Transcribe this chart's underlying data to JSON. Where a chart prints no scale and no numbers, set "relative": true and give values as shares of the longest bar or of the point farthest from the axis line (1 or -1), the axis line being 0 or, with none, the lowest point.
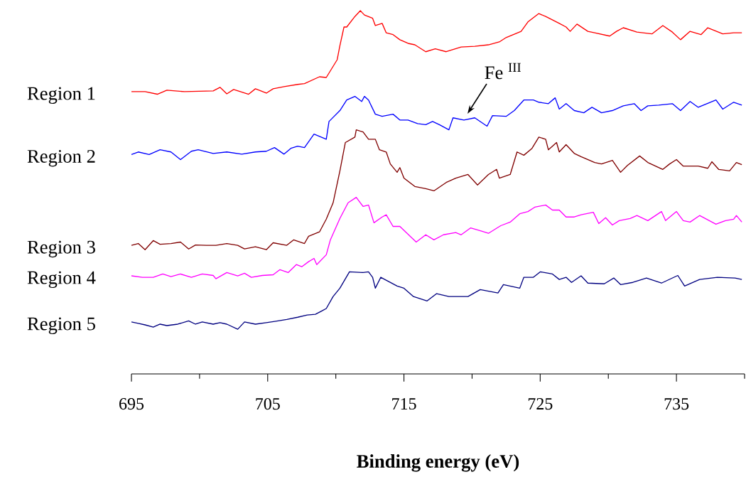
{
  "chart_data": {
    "type": "line",
    "relative": true,
    "xlabel": "Binding energy (eV)",
    "xlim": [
      695,
      740
    ],
    "xticks": [
      695,
      {
        "value": 700,
        "label": null
      },
      705,
      {
        "value": 710,
        "label": null
      },
      715,
      {
        "value": 720,
        "label": null
      },
      725,
      {
        "value": 730,
        "label": null
      },
      735,
      {
        "value": 740,
        "label": null
      }
    ],
    "legend": false,
    "annotations": [
      "Fe $^{III}$"
    ],
    "series": [
      {
        "name": "Region 1",
        "color": "#ff0000",
        "x": [
          695.0,
          696.0,
          696.9,
          697.6,
          698.9,
          701.0,
          701.5,
          702.0,
          702.5,
          703.6,
          704.1,
          704.9,
          705.4,
          706.2,
          707.2,
          707.7,
          708.8,
          709.3,
          710.1,
          710.3,
          710.6,
          710.8,
          711.4,
          711.8,
          712.1,
          712.7,
          712.9,
          713.4,
          713.7,
          714.2,
          714.7,
          715.3,
          715.8,
          716.6,
          717.3,
          718.1,
          719.2,
          720.2,
          721.2,
          722.0,
          722.5,
          723.6,
          724.1,
          724.9,
          725.4,
          726.4,
          726.9,
          727.2,
          727.7,
          728.5,
          729.0,
          730.1,
          730.6,
          731.1,
          732.1,
          733.2,
          734.0,
          734.7,
          735.3,
          736.0,
          736.8,
          737.3,
          738.4,
          739.2,
          739.8
        ],
        "values": [
          0.777,
          0.777,
          0.77,
          0.781,
          0.777,
          0.779,
          0.789,
          0.771,
          0.783,
          0.77,
          0.785,
          0.773,
          0.785,
          0.791,
          0.797,
          0.799,
          0.818,
          0.816,
          0.865,
          0.904,
          0.955,
          0.955,
          0.984,
          1.0,
          0.988,
          0.979,
          0.959,
          0.965,
          0.939,
          0.934,
          0.92,
          0.91,
          0.906,
          0.887,
          0.895,
          0.887,
          0.9,
          0.902,
          0.906,
          0.914,
          0.926,
          0.943,
          0.969,
          0.992,
          0.984,
          0.965,
          0.955,
          0.943,
          0.963,
          0.943,
          0.939,
          0.93,
          0.943,
          0.953,
          0.941,
          0.936,
          0.959,
          0.941,
          0.92,
          0.943,
          0.934,
          0.953,
          0.936,
          0.939,
          0.939
        ]
      },
      {
        "name": "Region 2",
        "color": "#0000ff",
        "x": [
          695.0,
          695.5,
          696.3,
          697.1,
          697.9,
          698.6,
          699.4,
          699.9,
          701.0,
          702.0,
          703.1,
          704.1,
          704.9,
          705.5,
          706.2,
          706.7,
          707.2,
          707.7,
          708.4,
          709.3,
          709.5,
          710.3,
          710.8,
          711.4,
          711.9,
          712.1,
          712.4,
          712.9,
          713.4,
          714.2,
          714.7,
          715.3,
          716.0,
          716.6,
          717.1,
          717.6,
          718.3,
          718.6,
          719.4,
          720.2,
          721.1,
          721.5,
          722.5,
          723.1,
          723.8,
          724.5,
          724.9,
          725.6,
          726.1,
          726.4,
          726.9,
          727.5,
          728.2,
          728.8,
          729.5,
          730.3,
          731.1,
          731.9,
          732.4,
          732.9,
          733.7,
          734.7,
          735.3,
          736.0,
          736.6,
          737.9,
          738.4,
          739.2,
          739.8
        ],
        "values": [
          0.604,
          0.611,
          0.604,
          0.617,
          0.611,
          0.59,
          0.613,
          0.617,
          0.607,
          0.611,
          0.605,
          0.611,
          0.613,
          0.623,
          0.605,
          0.621,
          0.627,
          0.623,
          0.66,
          0.646,
          0.695,
          0.725,
          0.754,
          0.764,
          0.75,
          0.764,
          0.754,
          0.715,
          0.709,
          0.715,
          0.699,
          0.699,
          0.689,
          0.686,
          0.695,
          0.686,
          0.672,
          0.705,
          0.699,
          0.705,
          0.682,
          0.711,
          0.709,
          0.725,
          0.754,
          0.754,
          0.748,
          0.744,
          0.76,
          0.729,
          0.744,
          0.725,
          0.719,
          0.734,
          0.719,
          0.725,
          0.738,
          0.744,
          0.725,
          0.738,
          0.74,
          0.744,
          0.725,
          0.75,
          0.734,
          0.754,
          0.729,
          0.748,
          0.74
        ]
      },
      {
        "name": "Region 3",
        "color": "#800000",
        "x": [
          695.0,
          695.5,
          696.0,
          696.6,
          697.1,
          697.9,
          698.6,
          699.2,
          699.7,
          700.5,
          701.2,
          702.0,
          702.8,
          703.3,
          704.1,
          704.9,
          705.4,
          706.4,
          706.9,
          707.7,
          708.0,
          708.8,
          709.3,
          709.8,
          710.3,
          710.7,
          711.4,
          711.5,
          712.0,
          712.4,
          712.9,
          713.2,
          713.7,
          714.0,
          714.5,
          714.7,
          715.0,
          715.8,
          716.6,
          717.2,
          718.1,
          718.8,
          719.7,
          720.4,
          721.2,
          721.8,
          722.0,
          722.8,
          723.3,
          723.8,
          724.4,
          724.9,
          725.4,
          725.6,
          726.2,
          726.4,
          726.9,
          727.5,
          728.0,
          729.0,
          729.5,
          730.3,
          730.9,
          731.4,
          732.3,
          732.9,
          734.0,
          734.5,
          735.0,
          735.5,
          736.6,
          737.3,
          737.6,
          738.1,
          738.9,
          739.4,
          739.8
        ],
        "values": [
          0.354,
          0.359,
          0.342,
          0.367,
          0.357,
          0.359,
          0.363,
          0.344,
          0.355,
          0.354,
          0.354,
          0.359,
          0.354,
          0.344,
          0.35,
          0.342,
          0.361,
          0.354,
          0.369,
          0.359,
          0.379,
          0.391,
          0.426,
          0.471,
          0.559,
          0.637,
          0.652,
          0.672,
          0.666,
          0.646,
          0.646,
          0.617,
          0.611,
          0.578,
          0.555,
          0.568,
          0.539,
          0.516,
          0.51,
          0.504,
          0.527,
          0.539,
          0.549,
          0.52,
          0.549,
          0.563,
          0.539,
          0.549,
          0.611,
          0.602,
          0.621,
          0.652,
          0.646,
          0.617,
          0.637,
          0.611,
          0.631,
          0.607,
          0.598,
          0.582,
          0.578,
          0.588,
          0.555,
          0.574,
          0.6,
          0.582,
          0.563,
          0.578,
          0.59,
          0.572,
          0.572,
          0.566,
          0.584,
          0.563,
          0.559,
          0.582,
          0.576
        ]
      },
      {
        "name": "Region 4",
        "color": "#ff00ff",
        "x": [
          695.0,
          695.8,
          696.6,
          697.3,
          697.9,
          698.6,
          699.4,
          700.2,
          701.0,
          701.2,
          702.0,
          702.8,
          703.3,
          703.8,
          704.6,
          705.4,
          705.9,
          706.5,
          707.1,
          707.5,
          708.0,
          708.4,
          708.6,
          709.3,
          709.6,
          710.3,
          710.9,
          711.5,
          712.0,
          712.4,
          712.8,
          713.4,
          713.7,
          714.2,
          714.7,
          715.9,
          716.6,
          717.2,
          717.9,
          718.8,
          719.2,
          719.9,
          720.7,
          721.2,
          722.1,
          722.8,
          723.5,
          724.1,
          724.6,
          725.4,
          725.9,
          726.4,
          726.9,
          727.5,
          728.0,
          728.9,
          729.3,
          729.8,
          730.3,
          730.8,
          731.6,
          732.1,
          732.9,
          733.9,
          734.2,
          735.0,
          735.5,
          736.0,
          736.7,
          737.9,
          738.6,
          739.2,
          739.4,
          739.8
        ],
        "values": [
          0.27,
          0.266,
          0.266,
          0.275,
          0.268,
          0.275,
          0.266,
          0.275,
          0.271,
          0.262,
          0.279,
          0.27,
          0.277,
          0.266,
          0.271,
          0.273,
          0.287,
          0.279,
          0.301,
          0.295,
          0.309,
          0.318,
          0.301,
          0.328,
          0.369,
          0.428,
          0.471,
          0.486,
          0.461,
          0.465,
          0.416,
          0.432,
          0.438,
          0.406,
          0.406,
          0.363,
          0.383,
          0.369,
          0.383,
          0.389,
          0.383,
          0.402,
          0.393,
          0.387,
          0.408,
          0.418,
          0.441,
          0.447,
          0.459,
          0.465,
          0.451,
          0.451,
          0.432,
          0.432,
          0.438,
          0.445,
          0.414,
          0.43,
          0.41,
          0.422,
          0.428,
          0.436,
          0.422,
          0.447,
          0.422,
          0.447,
          0.422,
          0.418,
          0.436,
          0.412,
          0.422,
          0.426,
          0.436,
          0.418
        ]
      },
      {
        "name": "Region 5",
        "color": "#000080",
        "x": [
          695.0,
          695.5,
          696.0,
          696.6,
          697.1,
          697.6,
          698.4,
          699.2,
          699.7,
          700.2,
          701.0,
          701.5,
          702.0,
          702.8,
          703.3,
          704.1,
          704.9,
          705.6,
          706.4,
          707.2,
          707.9,
          708.5,
          709.0,
          709.3,
          709.8,
          710.3,
          711.0,
          712.0,
          712.4,
          712.7,
          712.9,
          713.3,
          714.5,
          715.0,
          715.7,
          716.7,
          717.4,
          718.3,
          719.7,
          720.6,
          721.9,
          722.3,
          723.5,
          723.8,
          724.5,
          725.0,
          725.9,
          726.4,
          726.9,
          727.3,
          728.0,
          728.5,
          729.7,
          730.4,
          730.9,
          731.8,
          732.8,
          733.9,
          735.1,
          735.6,
          736.7,
          738.0,
          739.3,
          739.8
        ],
        "values": [
          0.143,
          0.139,
          0.135,
          0.129,
          0.137,
          0.133,
          0.137,
          0.146,
          0.137,
          0.143,
          0.137,
          0.141,
          0.137,
          0.123,
          0.143,
          0.137,
          0.141,
          0.145,
          0.15,
          0.156,
          0.162,
          0.164,
          0.174,
          0.18,
          0.213,
          0.236,
          0.281,
          0.279,
          0.281,
          0.266,
          0.236,
          0.266,
          0.242,
          0.236,
          0.213,
          0.201,
          0.221,
          0.213,
          0.213,
          0.232,
          0.223,
          0.246,
          0.236,
          0.266,
          0.266,
          0.281,
          0.275,
          0.26,
          0.266,
          0.252,
          0.27,
          0.25,
          0.248,
          0.264,
          0.246,
          0.252,
          0.264,
          0.25,
          0.271,
          0.242,
          0.26,
          0.266,
          0.264,
          0.26
        ]
      }
    ]
  }
}
